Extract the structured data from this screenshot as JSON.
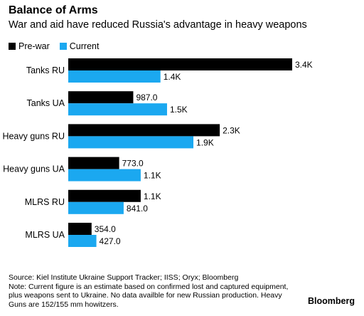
{
  "chart_data": {
    "type": "bar",
    "orientation": "horizontal",
    "title": "Balance of Arms",
    "subtitle": "War and aid have reduced Russia's advantage in heavy weapons",
    "categories": [
      "Tanks RU",
      "Tanks UA",
      "Heavy guns RU",
      "Heavy guns UA",
      "MLRS RU",
      "MLRS UA"
    ],
    "series": [
      {
        "name": "Pre-war",
        "color": "#000000",
        "values": [
          3400,
          987,
          2300,
          773,
          1100,
          354
        ],
        "labels": [
          "3.4K",
          "987.0",
          "2.3K",
          "773.0",
          "1.1K",
          "354.0"
        ]
      },
      {
        "name": "Current",
        "color": "#1ba8f0",
        "values": [
          1400,
          1500,
          1900,
          1100,
          841,
          427
        ],
        "labels": [
          "1.4K",
          "1.5K",
          "1.9K",
          "1.1K",
          "841.0",
          "427.0"
        ]
      }
    ],
    "xlim": [
      0,
      3400
    ],
    "grid": false,
    "legend_position": "top-left"
  },
  "footer": {
    "source": "Source: Kiel Institute Ukraine Support Tracker; IISS; Oryx; Bloomberg",
    "note_line1": "Note: Current figure is an estimate based on confirmed lost and captured equipment,",
    "note_line2": "plus weapons sent to Ukraine. No data availble for new Russian production. Heavy",
    "note_line3": "Guns are 152/155 mm howitzers."
  },
  "brand": "Bloomberg"
}
